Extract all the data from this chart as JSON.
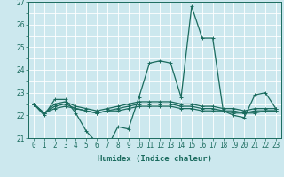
{
  "xlabel": "Humidex (Indice chaleur)",
  "ylabel": "",
  "xlim": [
    -0.5,
    23.5
  ],
  "ylim": [
    21,
    27
  ],
  "yticks": [
    21,
    22,
    23,
    24,
    25,
    26,
    27
  ],
  "xticks": [
    0,
    1,
    2,
    3,
    4,
    5,
    6,
    7,
    8,
    9,
    10,
    11,
    12,
    13,
    14,
    15,
    16,
    17,
    18,
    19,
    20,
    21,
    22,
    23
  ],
  "background_color": "#cce8ee",
  "grid_color": "#ffffff",
  "line_color": "#1a6b5e",
  "series": [
    [
      22.5,
      22.0,
      22.7,
      22.7,
      22.1,
      21.3,
      20.8,
      20.6,
      21.5,
      21.4,
      22.8,
      24.3,
      24.4,
      24.3,
      22.8,
      26.8,
      25.4,
      25.4,
      22.2,
      22.0,
      21.9,
      22.9,
      23.0,
      22.3
    ],
    [
      22.5,
      22.1,
      22.5,
      22.6,
      22.4,
      22.3,
      22.2,
      22.3,
      22.4,
      22.5,
      22.6,
      22.6,
      22.6,
      22.6,
      22.5,
      22.5,
      22.4,
      22.4,
      22.3,
      22.3,
      22.2,
      22.3,
      22.3,
      22.3
    ],
    [
      22.5,
      22.1,
      22.4,
      22.5,
      22.3,
      22.2,
      22.1,
      22.2,
      22.3,
      22.4,
      22.5,
      22.5,
      22.5,
      22.5,
      22.4,
      22.4,
      22.3,
      22.3,
      22.2,
      22.2,
      22.1,
      22.2,
      22.2,
      22.2
    ],
    [
      22.5,
      22.1,
      22.3,
      22.4,
      22.3,
      22.2,
      22.1,
      22.2,
      22.2,
      22.3,
      22.4,
      22.4,
      22.4,
      22.4,
      22.3,
      22.3,
      22.2,
      22.2,
      22.2,
      22.1,
      22.1,
      22.1,
      22.2,
      22.2
    ]
  ],
  "subgrid_yticks": [
    21,
    21.5,
    22,
    22.5,
    23,
    23.5,
    24,
    24.5,
    25,
    25.5,
    26,
    26.5,
    27
  ],
  "xlabel_fontsize": 6.5,
  "tick_fontsize": 5.5
}
